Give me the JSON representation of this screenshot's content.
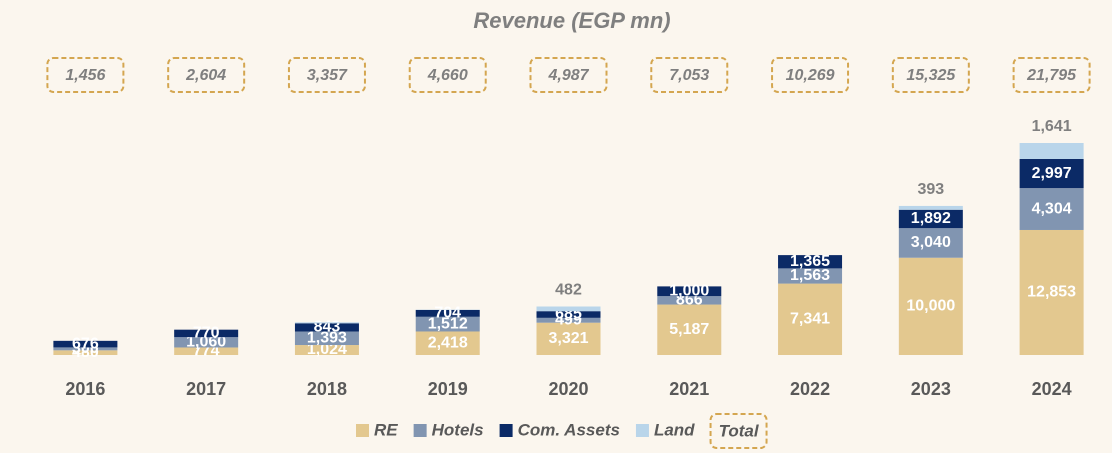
{
  "chart_data": {
    "type": "bar",
    "stacked": true,
    "title": "Revenue (EGP mn)",
    "categories": [
      "2016",
      "2017",
      "2018",
      "2019",
      "2020",
      "2021",
      "2022",
      "2023",
      "2024"
    ],
    "series": [
      {
        "name": "RE",
        "color": "#e3c88f",
        "label_color": "#ffffff",
        "values": [
          480,
          774,
          1024,
          2418,
          3321,
          5187,
          7341,
          10000,
          12853
        ],
        "value_labels": [
          "480",
          "774",
          "1,024",
          "2,418",
          "3,321",
          "5,187",
          "7,341",
          "10,000",
          "12,853"
        ]
      },
      {
        "name": "Hotels",
        "color": "#8195b1",
        "label_color": "#ffffff",
        "values": [
          300,
          1060,
          1393,
          1512,
          499,
          866,
          1563,
          3040,
          4304
        ],
        "value_labels": [
          "300",
          "1,060",
          "1,393",
          "1,512",
          "499",
          "866",
          "1,563",
          "3,040",
          "4,304"
        ]
      },
      {
        "name": "Com. Assets",
        "color": "#0b2a66",
        "label_color": "#ffffff",
        "values": [
          676,
          770,
          843,
          704,
          685,
          1000,
          1365,
          1892,
          2997
        ],
        "value_labels": [
          "676",
          "770",
          "843",
          "704",
          "685",
          "1,000",
          "1,365",
          "1,892",
          "2,997"
        ]
      },
      {
        "name": "Land",
        "color": "#b9d5ea",
        "label_color": "#7f7f7f",
        "values": [
          null,
          null,
          97,
          26,
          482,
          null,
          null,
          393,
          1641
        ],
        "value_labels": [
          null,
          null,
          null,
          null,
          "482",
          null,
          null,
          "393",
          "1,641"
        ]
      }
    ],
    "totals": {
      "name": "Total",
      "values": [
        1456,
        2604,
        3357,
        4660,
        4987,
        7053,
        10269,
        15325,
        21795
      ],
      "value_labels": [
        "1,456",
        "2,604",
        "3,357",
        "4,660",
        "4,987",
        "7,053",
        "10,269",
        "15,325",
        "21,795"
      ]
    },
    "legend": "bottom"
  }
}
